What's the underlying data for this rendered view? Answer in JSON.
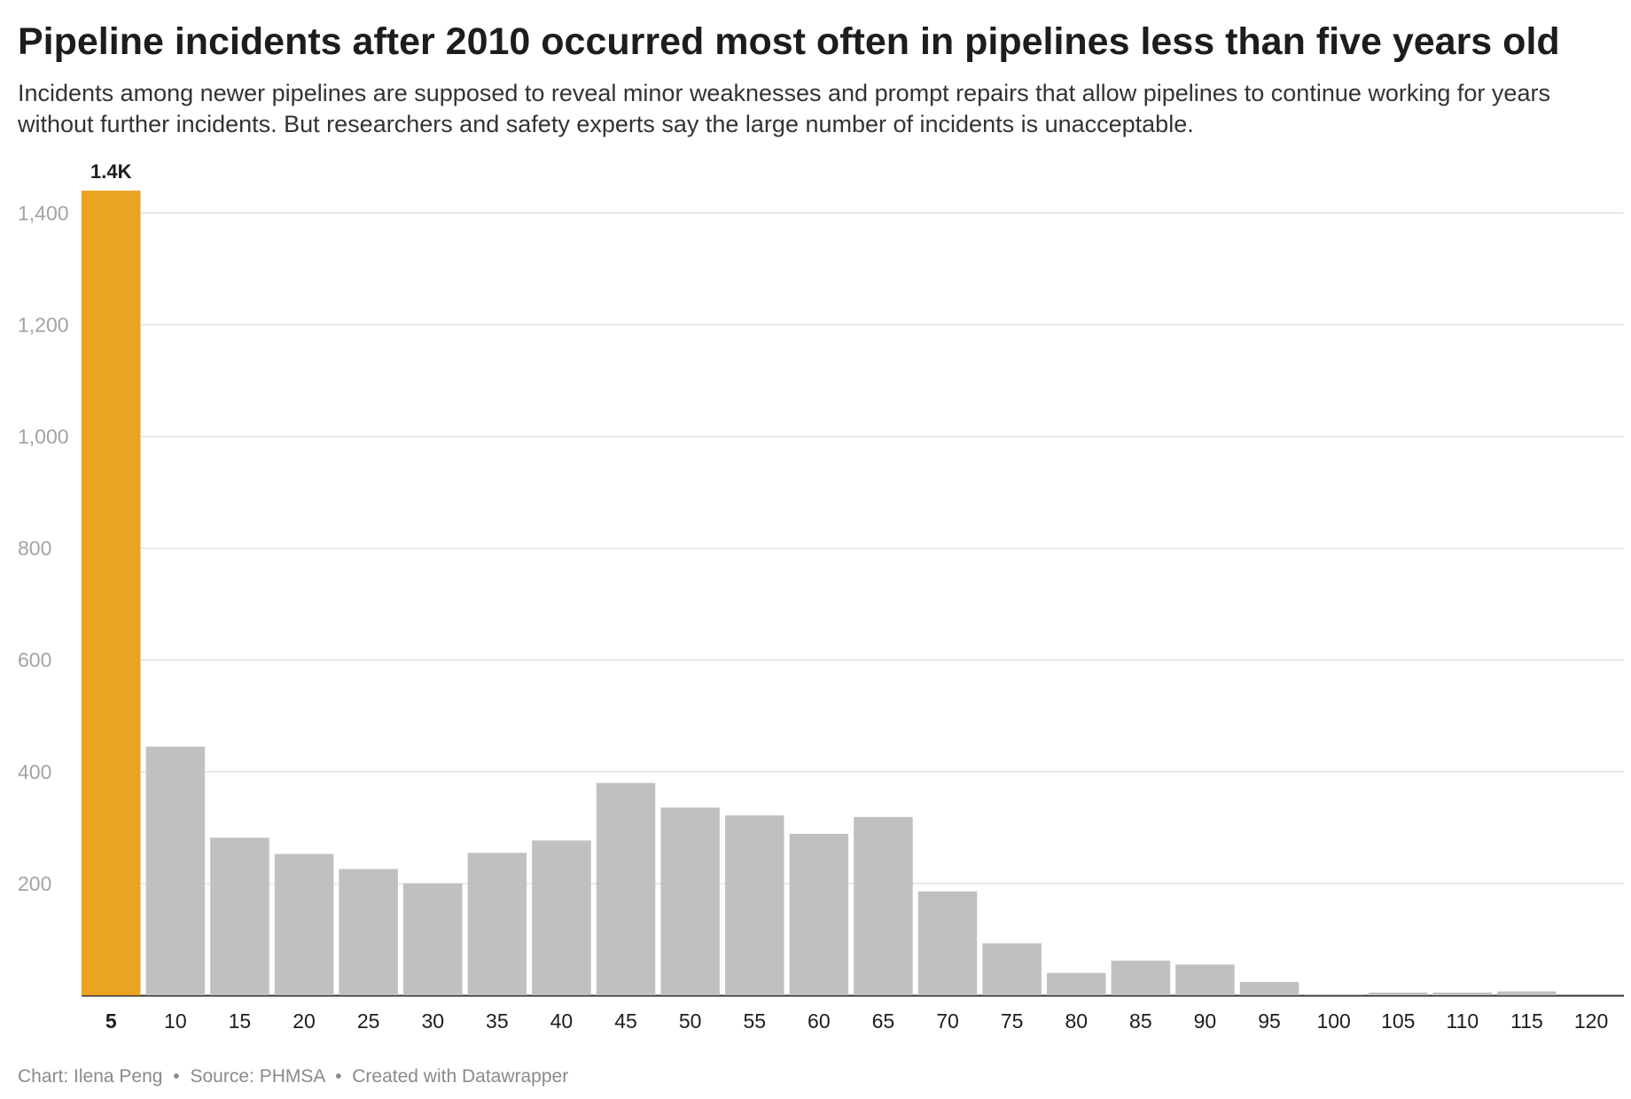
{
  "title": "Pipeline incidents after 2010 occurred most often in pipelines less than five years old",
  "subtitle": "Incidents among newer pipelines are supposed to reveal minor weaknesses and prompt repairs that allow pipelines to continue working for years without further incidents. But researchers and safety experts say the large number of incidents is unacceptable.",
  "footer": {
    "chart_credit": "Chart: Ilena Peng",
    "source": "Source: PHMSA",
    "created_with": "Created with Datawrapper",
    "separator": "•"
  },
  "colors": {
    "highlight": "#eba322",
    "default_bar": "#c0c0c0",
    "grid": "#e2e2e2",
    "axis": "#333333"
  },
  "chart_data": {
    "type": "bar",
    "title": "Pipeline incidents after 2010 occurred most often in pipelines less than five years old",
    "xlabel": "",
    "ylabel": "",
    "categories": [
      "5",
      "10",
      "15",
      "20",
      "25",
      "30",
      "35",
      "40",
      "45",
      "50",
      "55",
      "60",
      "65",
      "70",
      "75",
      "80",
      "85",
      "90",
      "95",
      "100",
      "105",
      "110",
      "115",
      "120"
    ],
    "values": [
      1440,
      445,
      282,
      253,
      226,
      200,
      255,
      277,
      380,
      336,
      322,
      289,
      319,
      186,
      93,
      40,
      62,
      55,
      24,
      2,
      5,
      5,
      7,
      0
    ],
    "highlight_index": 0,
    "highlight_label": "1.4K",
    "ylim": [
      0,
      1500
    ],
    "yticks": [
      200,
      400,
      600,
      800,
      1000,
      1200,
      1400
    ],
    "ytick_labels": [
      "200",
      "400",
      "600",
      "800",
      "1,000",
      "1,200",
      "1,400"
    ],
    "grid": true,
    "legend": "none"
  }
}
